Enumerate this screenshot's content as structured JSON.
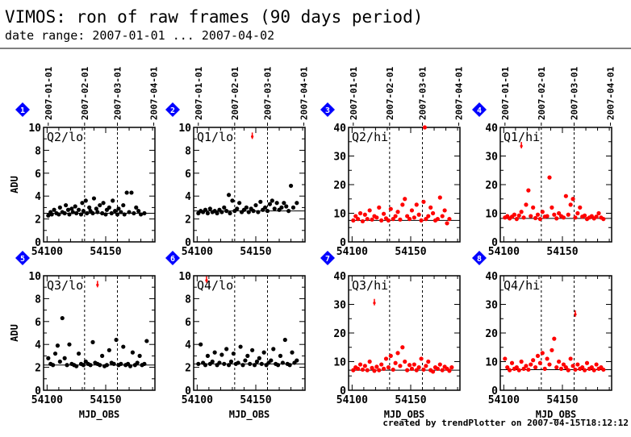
{
  "title": "VIMOS: ron of raw frames (90 days period)",
  "subtitle": "date range: 2007-01-01 ... 2007-04-02",
  "footer": "created by trendPlotter on 2007-04-15T18:12:12",
  "colors": {
    "black": "#000000",
    "red": "#ff0000",
    "badge": "#0000ff"
  },
  "chart_data": [
    {
      "panel": "1",
      "label": "Q2/lo",
      "type": "scatter",
      "color": "black",
      "xlim": [
        54097,
        54192
      ],
      "ylim": [
        0,
        10
      ],
      "yticks": [
        0,
        2,
        4,
        6,
        8,
        10
      ],
      "xticks": [
        54100,
        54150
      ],
      "ylabel": "ADU",
      "xlabel": "",
      "date_ticks": [
        {
          "mjd": 54101,
          "label": "2007-01-01"
        },
        {
          "mjd": 54132,
          "label": "2007-02-01"
        },
        {
          "mjd": 54160,
          "label": "2007-03-01"
        },
        {
          "mjd": 54191,
          "label": "2007-04-01"
        }
      ],
      "vlines": [
        54132,
        54160
      ],
      "refline": 2.5,
      "x": [
        54101,
        54103,
        54104,
        54106,
        54108,
        54110,
        54111,
        54113,
        54115,
        54116,
        54118,
        54119,
        54121,
        54122,
        54124,
        54125,
        54127,
        54129,
        54130,
        54131,
        54133,
        54134,
        54136,
        54137,
        54139,
        54140,
        54142,
        54143,
        54145,
        54147,
        54148,
        54150,
        54151,
        54153,
        54155,
        54156,
        54158,
        54160,
        54161,
        54163,
        54165,
        54166,
        54168,
        54170,
        54172,
        54174,
        54176,
        54178,
        54180,
        54183
      ],
      "y": [
        2.3,
        2.6,
        2.4,
        2.8,
        2.5,
        2.4,
        3.0,
        2.6,
        2.5,
        3.2,
        2.8,
        2.4,
        2.9,
        2.6,
        3.1,
        2.5,
        2.8,
        2.4,
        3.4,
        2.7,
        3.6,
        2.5,
        3.0,
        2.7,
        2.5,
        3.8,
        2.9,
        2.6,
        3.2,
        2.5,
        3.4,
        2.4,
        2.8,
        3.0,
        2.5,
        3.6,
        2.7,
        2.4,
        2.9,
        2.6,
        3.2,
        2.4,
        4.3,
        2.6,
        4.3,
        2.5,
        3.0,
        2.7,
        2.4,
        2.5
      ]
    },
    {
      "panel": "2",
      "label": "Q1/lo",
      "type": "scatter",
      "color": "black",
      "xlim": [
        54097,
        54192
      ],
      "ylim": [
        0,
        10
      ],
      "yticks": [
        0,
        2,
        4,
        6,
        8,
        10
      ],
      "xticks": [
        54100,
        54150
      ],
      "ylabel": "",
      "xlabel": "",
      "date_ticks": [
        {
          "mjd": 54101,
          "label": "2007-01-01"
        },
        {
          "mjd": 54132,
          "label": "2007-02-01"
        },
        {
          "mjd": 54160,
          "label": "2007-03-01"
        },
        {
          "mjd": 54191,
          "label": "2007-04-01"
        }
      ],
      "vlines": [
        54132,
        54160
      ],
      "refline": 2.7,
      "x": [
        54101,
        54103,
        54105,
        54107,
        54109,
        54111,
        54113,
        54115,
        54117,
        54119,
        54121,
        54123,
        54125,
        54127,
        54128,
        54130,
        54132,
        54134,
        54136,
        54138,
        54140,
        54142,
        54144,
        54146,
        54148,
        54150,
        54152,
        54154,
        54156,
        54158,
        54160,
        54162,
        54164,
        54166,
        54168,
        54170,
        54172,
        54174,
        54176,
        54178,
        54180,
        54182,
        54185
      ],
      "y": [
        2.5,
        2.7,
        2.6,
        2.8,
        2.5,
        2.9,
        2.6,
        2.7,
        2.5,
        2.8,
        2.6,
        3.0,
        2.7,
        4.1,
        2.5,
        3.6,
        2.7,
        2.9,
        3.4,
        2.6,
        2.8,
        3.0,
        2.6,
        2.9,
        2.7,
        3.2,
        2.6,
        3.5,
        2.8,
        3.0,
        2.7,
        3.3,
        3.6,
        2.9,
        3.4,
        2.8,
        3.0,
        3.4,
        3.1,
        2.7,
        4.9,
        3.0,
        3.4
      ],
      "outliers": [
        {
          "x": 54147,
          "y": 9.2
        }
      ]
    },
    {
      "panel": "3",
      "label": "Q2/hi",
      "type": "scatter",
      "color": "red",
      "xlim": [
        54097,
        54192
      ],
      "ylim": [
        0,
        40
      ],
      "yticks": [
        0,
        10,
        20,
        30,
        40
      ],
      "xticks": [
        54100,
        54150
      ],
      "ylabel": "",
      "xlabel": "",
      "date_ticks": [
        {
          "mjd": 54101,
          "label": "2007-01-01"
        },
        {
          "mjd": 54132,
          "label": "2007-02-01"
        },
        {
          "mjd": 54160,
          "label": "2007-03-01"
        },
        {
          "mjd": 54191,
          "label": "2007-04-01"
        }
      ],
      "vlines": [
        54132,
        54160
      ],
      "refline": 7.5,
      "x": [
        54101,
        54103,
        54105,
        54107,
        54109,
        54111,
        54113,
        54115,
        54117,
        54119,
        54121,
        54123,
        54125,
        54127,
        54129,
        54131,
        54133,
        54135,
        54137,
        54139,
        54141,
        54143,
        54145,
        54147,
        54149,
        54151,
        54153,
        54155,
        54157,
        54159,
        54161,
        54163,
        54165,
        54167,
        54169,
        54171,
        54173,
        54175,
        54177,
        54179,
        54181,
        54183
      ],
      "y": [
        7.5,
        9.0,
        8.0,
        10.0,
        7.2,
        9.5,
        8.0,
        11.0,
        7.8,
        9.0,
        8.5,
        12.0,
        7.5,
        9.8,
        8.2,
        7.5,
        11.5,
        8.0,
        9.0,
        10.5,
        7.8,
        13.0,
        15.0,
        9.0,
        8.0,
        11.0,
        8.5,
        13.0,
        9.5,
        7.5,
        14.0,
        8.0,
        9.0,
        12.0,
        10.0,
        7.5,
        8.0,
        15.5,
        9.0,
        11.0,
        6.5,
        8.0
      ],
      "outliers": [
        {
          "x": 54162,
          "y": 40
        }
      ]
    },
    {
      "panel": "4",
      "label": "Q1/hi",
      "type": "scatter",
      "color": "red",
      "xlim": [
        54097,
        54192
      ],
      "ylim": [
        0,
        40
      ],
      "yticks": [
        0,
        10,
        20,
        30,
        40
      ],
      "xticks": [
        54100,
        54150
      ],
      "ylabel": "",
      "xlabel": "",
      "date_ticks": [
        {
          "mjd": 54101,
          "label": "2007-01-01"
        },
        {
          "mjd": 54132,
          "label": "2007-02-01"
        },
        {
          "mjd": 54160,
          "label": "2007-03-01"
        },
        {
          "mjd": 54191,
          "label": "2007-04-01"
        }
      ],
      "vlines": [
        54132,
        54160
      ],
      "refline": 8.2,
      "x": [
        54101,
        54103,
        54105,
        54107,
        54109,
        54111,
        54113,
        54115,
        54117,
        54119,
        54121,
        54123,
        54125,
        54127,
        54129,
        54131,
        54133,
        54135,
        54137,
        54139,
        54141,
        54143,
        54145,
        54147,
        54149,
        54151,
        54153,
        54155,
        54157,
        54159,
        54161,
        54163,
        54165,
        54167,
        54169,
        54171,
        54173,
        54175,
        54177,
        54179,
        54181,
        54183,
        54185
      ],
      "y": [
        8.5,
        9.0,
        8.2,
        8.8,
        9.5,
        8.0,
        9.2,
        10.5,
        8.5,
        13.0,
        18.0,
        9.0,
        12.0,
        8.3,
        9.5,
        8.0,
        10.5,
        8.8,
        9.0,
        22.5,
        12.0,
        9.5,
        8.2,
        10.0,
        9.0,
        8.5,
        16.0,
        9.5,
        13.0,
        15.0,
        8.5,
        10.0,
        12.0,
        8.8,
        9.2,
        8.0,
        8.5,
        9.0,
        8.2,
        8.8,
        10.0,
        8.5,
        8.0
      ],
      "outliers": [
        {
          "x": 54115,
          "y": 33.5
        }
      ]
    },
    {
      "panel": "5",
      "label": "Q3/lo",
      "type": "scatter",
      "color": "black",
      "xlim": [
        54097,
        54192
      ],
      "ylim": [
        0,
        10
      ],
      "yticks": [
        0,
        2,
        4,
        6,
        8,
        10
      ],
      "xticks": [
        54100,
        54150
      ],
      "ylabel": "ADU",
      "xlabel": "MJD_OBS",
      "date_ticks": [],
      "vlines": [
        54132,
        54160
      ],
      "refline": 2.2,
      "x": [
        54101,
        54103,
        54105,
        54107,
        54109,
        54111,
        54113,
        54115,
        54117,
        54119,
        54121,
        54123,
        54125,
        54127,
        54129,
        54131,
        54133,
        54135,
        54137,
        54139,
        54141,
        54143,
        54145,
        54147,
        54149,
        54151,
        54153,
        54155,
        54157,
        54159,
        54161,
        54163,
        54165,
        54167,
        54169,
        54171,
        54173,
        54175,
        54177,
        54179,
        54181,
        54183,
        54185
      ],
      "y": [
        2.8,
        2.3,
        2.2,
        3.2,
        3.9,
        2.5,
        6.3,
        2.8,
        2.2,
        4.0,
        2.3,
        2.2,
        2.1,
        3.2,
        2.3,
        2.2,
        2.5,
        2.3,
        2.2,
        4.2,
        2.4,
        2.3,
        2.2,
        3.0,
        2.1,
        2.2,
        3.5,
        2.4,
        2.3,
        4.4,
        2.2,
        2.3,
        3.8,
        2.2,
        2.3,
        2.1,
        3.3,
        2.2,
        2.4,
        3.0,
        2.2,
        2.3,
        4.3
      ],
      "outliers": [
        {
          "x": 54143,
          "y": 9.2
        }
      ]
    },
    {
      "panel": "6",
      "label": "Q4/lo",
      "type": "scatter",
      "color": "black",
      "xlim": [
        54097,
        54192
      ],
      "ylim": [
        0,
        10
      ],
      "yticks": [
        0,
        2,
        4,
        6,
        8,
        10
      ],
      "xticks": [
        54100,
        54150
      ],
      "ylabel": "",
      "xlabel": "MJD_OBS",
      "date_ticks": [],
      "vlines": [
        54132,
        54160
      ],
      "refline": 2.3,
      "x": [
        54101,
        54103,
        54105,
        54107,
        54109,
        54111,
        54113,
        54115,
        54117,
        54119,
        54121,
        54123,
        54125,
        54127,
        54129,
        54131,
        54133,
        54135,
        54137,
        54139,
        54141,
        54143,
        54145,
        54147,
        54149,
        54151,
        54153,
        54155,
        54157,
        54159,
        54161,
        54163,
        54165,
        54167,
        54169,
        54171,
        54173,
        54175,
        54177,
        54179,
        54181,
        54183,
        54185
      ],
      "y": [
        2.3,
        4.0,
        2.4,
        2.2,
        3.0,
        2.3,
        2.5,
        3.3,
        2.2,
        2.4,
        3.1,
        2.3,
        3.6,
        2.2,
        2.5,
        3.2,
        2.3,
        2.4,
        3.8,
        2.2,
        2.6,
        3.0,
        2.3,
        3.5,
        2.2,
        2.5,
        2.8,
        2.3,
        3.3,
        2.2,
        2.4,
        2.6,
        3.6,
        2.3,
        2.2,
        3.0,
        2.4,
        4.4,
        2.3,
        2.2,
        3.3,
        2.4,
        2.6
      ],
      "outliers": [
        {
          "x": 54108,
          "y": 9.6
        }
      ]
    },
    {
      "panel": "7",
      "label": "Q3/hi",
      "type": "scatter",
      "color": "red",
      "xlim": [
        54097,
        54192
      ],
      "ylim": [
        0,
        40
      ],
      "yticks": [
        0,
        10,
        20,
        30,
        40
      ],
      "xticks": [
        54100,
        54150
      ],
      "ylabel": "",
      "xlabel": "MJD_OBS",
      "date_ticks": [],
      "vlines": [
        54132,
        54160
      ],
      "refline": 7.0,
      "x": [
        54101,
        54103,
        54105,
        54107,
        54109,
        54111,
        54113,
        54115,
        54117,
        54119,
        54121,
        54123,
        54125,
        54127,
        54129,
        54131,
        54133,
        54135,
        54137,
        54139,
        54141,
        54143,
        54145,
        54147,
        54149,
        54151,
        54153,
        54155,
        54157,
        54159,
        54161,
        54163,
        54165,
        54167,
        54169,
        54171,
        54173,
        54175,
        54177,
        54179,
        54181,
        54183,
        54185
      ],
      "y": [
        7.0,
        8.0,
        7.5,
        9.0,
        7.2,
        8.5,
        7.0,
        10.0,
        7.8,
        6.8,
        8.2,
        7.0,
        9.0,
        7.5,
        11.0,
        8.0,
        12.0,
        7.2,
        9.5,
        13.0,
        8.5,
        15.0,
        10.0,
        7.0,
        8.8,
        7.5,
        9.0,
        7.0,
        8.0,
        11.0,
        7.2,
        8.5,
        10.0,
        7.0,
        6.5,
        8.0,
        7.5,
        9.0,
        7.0,
        8.2,
        7.5,
        6.8,
        8.0
      ],
      "outliers": [
        {
          "x": 54119,
          "y": 30.5
        }
      ]
    },
    {
      "panel": "8",
      "label": "Q4/hi",
      "type": "scatter",
      "color": "red",
      "xlim": [
        54097,
        54192
      ],
      "ylim": [
        0,
        40
      ],
      "yticks": [
        0,
        10,
        20,
        30,
        40
      ],
      "xticks": [
        54100,
        54150
      ],
      "ylabel": "",
      "xlabel": "MJD_OBS",
      "date_ticks": [],
      "vlines": [
        54132,
        54160
      ],
      "refline": 7.2,
      "x": [
        54101,
        54103,
        54105,
        54107,
        54109,
        54111,
        54113,
        54115,
        54117,
        54119,
        54121,
        54123,
        54125,
        54127,
        54129,
        54131,
        54133,
        54135,
        54137,
        54139,
        54141,
        54143,
        54145,
        54147,
        54149,
        54151,
        54153,
        54155,
        54157,
        54159,
        54161,
        54163,
        54165,
        54167,
        54169,
        54171,
        54173,
        54175,
        54177,
        54179,
        54181,
        54183,
        54185
      ],
      "y": [
        11.0,
        8.0,
        7.0,
        9.5,
        7.5,
        8.0,
        7.0,
        10.0,
        7.5,
        8.5,
        7.2,
        9.0,
        10.5,
        8.0,
        12.0,
        9.5,
        13.0,
        7.5,
        11.0,
        9.0,
        14.0,
        18.0,
        8.0,
        10.0,
        7.5,
        9.0,
        8.0,
        7.0,
        11.0,
        8.5,
        7.2,
        9.0,
        7.5,
        8.0,
        7.0,
        9.5,
        7.5,
        8.0,
        7.0,
        9.0,
        7.5,
        8.0,
        7.2
      ],
      "outliers": [
        {
          "x": 54161,
          "y": 26.5
        }
      ]
    }
  ]
}
